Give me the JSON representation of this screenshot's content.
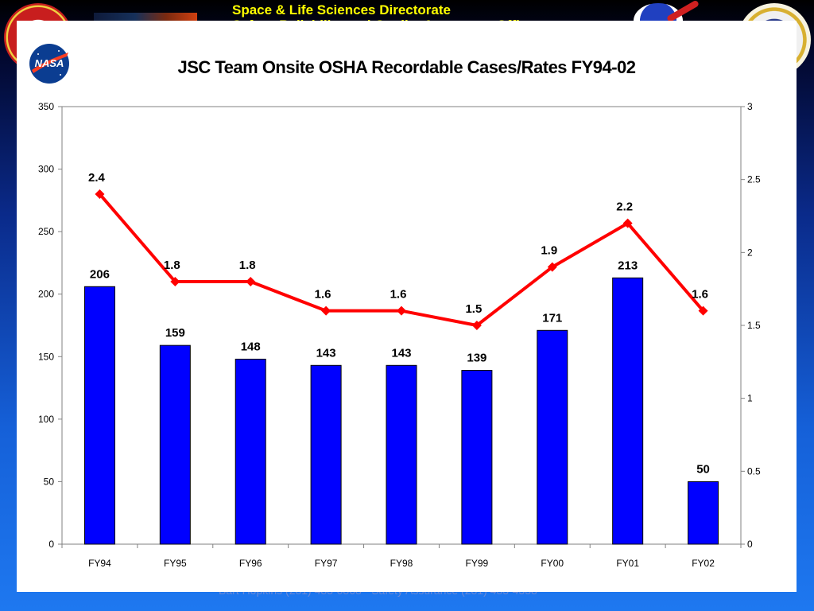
{
  "header": {
    "directorate": "Space & Life Sciences Directorate",
    "office": "Safety, Reliability and Quality Assurance Office"
  },
  "footer": {
    "text": "Bart Hopkins (281) 483-0868 · Safety Assurance (281) 483-4338"
  },
  "logos": {
    "left": "sr-qa-emblem-icon",
    "nasa": "nasa-meatball-icon",
    "right1": "nasa-insignia-icon",
    "right2": "nasa-seal-icon"
  },
  "colors": {
    "bar": "#0000ff",
    "bar_stroke": "#000000",
    "line": "#ff0000"
  },
  "chart_data": {
    "type": "bar",
    "title": "JSC Team Onsite OSHA Recordable Cases/Rates FY94-02",
    "categories": [
      "FY94",
      "FY95",
      "FY96",
      "FY97",
      "FY98",
      "FY99",
      "FY00",
      "FY01",
      "FY02"
    ],
    "series": [
      {
        "type": "bar",
        "axis": "left",
        "values": [
          206,
          159,
          148,
          143,
          143,
          139,
          171,
          213,
          50
        ]
      },
      {
        "type": "line",
        "axis": "right",
        "values": [
          2.4,
          1.8,
          1.8,
          1.6,
          1.6,
          1.5,
          1.9,
          2.2,
          1.6
        ]
      }
    ],
    "ylim_left": [
      0,
      350
    ],
    "yticks_left": [
      0,
      50,
      100,
      150,
      200,
      250,
      300,
      350
    ],
    "ylim_right": [
      0,
      3
    ],
    "yticks_right": [
      "0",
      "0.5",
      "1",
      "1.5",
      "2",
      "2.5",
      "3"
    ],
    "grid": false,
    "legend": "none",
    "data_labels": true
  }
}
